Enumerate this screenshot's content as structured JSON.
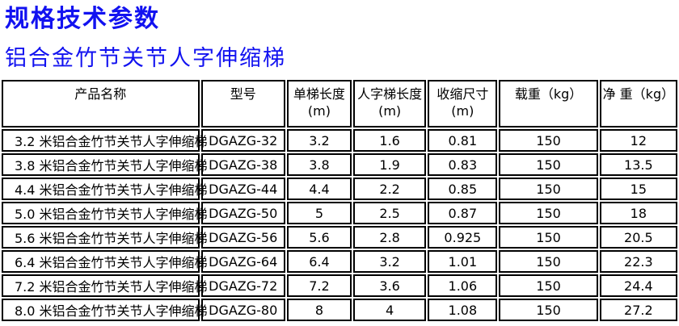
{
  "page": {
    "title": "规格技术参数",
    "subtitle": "铝合金竹节关节人字伸缩梯",
    "title_color": "#1212f0"
  },
  "table": {
    "columns": [
      {
        "label": "产品名称",
        "unit": ""
      },
      {
        "label": "型号",
        "unit": ""
      },
      {
        "label": "单梯长度",
        "unit": "(m)"
      },
      {
        "label": "人字梯长度",
        "unit": "(m)"
      },
      {
        "label": "收缩尺寸",
        "unit": "(m)"
      },
      {
        "label": "载重（kg）",
        "unit": ""
      },
      {
        "label": "净 重（kg）",
        "unit": ""
      }
    ],
    "rows": [
      [
        "3.2 米铝合金竹节关节人字伸缩梯",
        "DGAZG-32",
        "3.2",
        "1.6",
        "0.81",
        "150",
        "12"
      ],
      [
        "3.8 米铝合金竹节关节人字伸缩梯",
        "DGAZG-38",
        "3.8",
        "1.9",
        "0.83",
        "150",
        "13.5"
      ],
      [
        "4.4 米铝合金竹节关节人字伸缩梯",
        "DGAZG-44",
        "4.4",
        "2.2",
        "0.85",
        "150",
        "15"
      ],
      [
        "5.0 米铝合金竹节关节人字伸缩梯",
        "DGAZG-50",
        "5",
        "2.5",
        "0.87",
        "150",
        "18"
      ],
      [
        "5.6 米铝合金竹节关节人字伸缩梯",
        "DGAZG-56",
        "5.6",
        "2.8",
        "0.925",
        "150",
        "20.5"
      ],
      [
        "6.4 米铝合金竹节关节人字伸缩梯",
        "DGAZG-64",
        "6.4",
        "3.2",
        "1.01",
        "150",
        "22.3"
      ],
      [
        "7.2 米铝合金竹节关节人字伸缩梯",
        "DGAZG-72",
        "7.2",
        "3.6",
        "1.06",
        "150",
        "24.4"
      ],
      [
        "8.0 米铝合金竹节关节人字伸缩梯",
        "DGAZG-80",
        "8",
        "4",
        "1.08",
        "150",
        "27.2"
      ]
    ]
  }
}
